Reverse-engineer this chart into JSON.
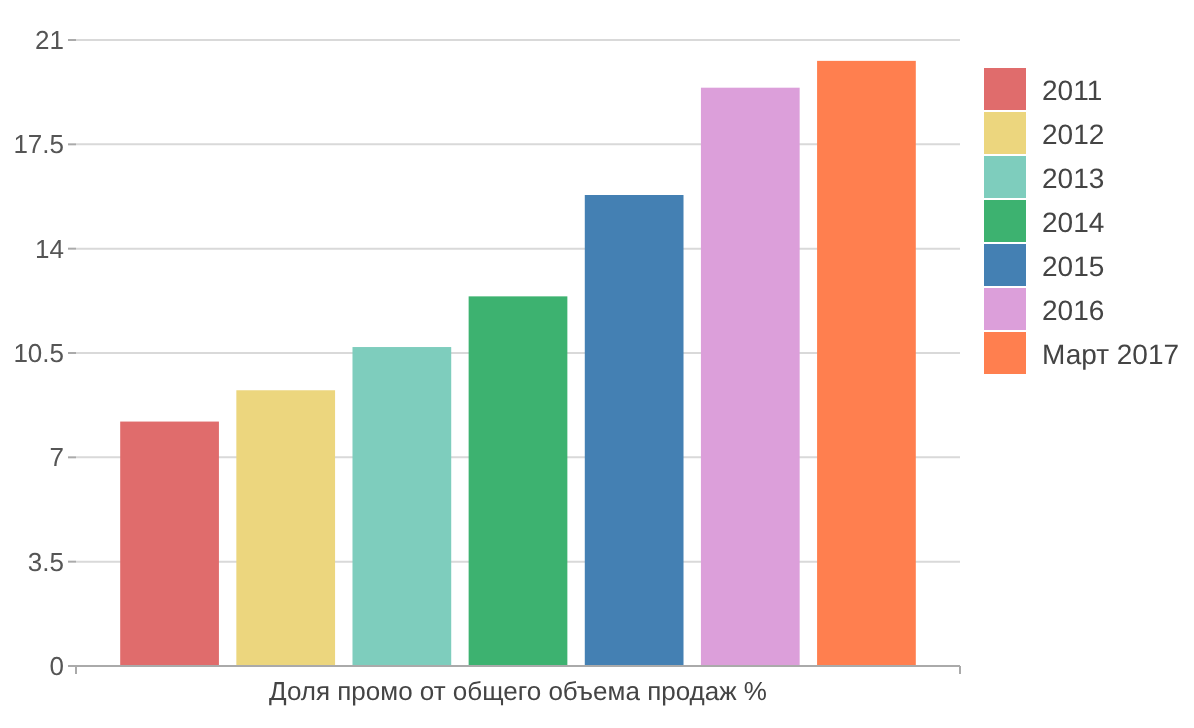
{
  "chart_data": {
    "type": "bar",
    "categories": [
      "Доля промо от общего объема продаж %"
    ],
    "series": [
      {
        "name": "2011",
        "color": "#e06c6c",
        "values": [
          8.2
        ]
      },
      {
        "name": "2012",
        "color": "#ecd67e",
        "values": [
          9.25
        ]
      },
      {
        "name": "2013",
        "color": "#7ecdbd",
        "values": [
          10.7
        ]
      },
      {
        "name": "2014",
        "color": "#3db270",
        "values": [
          12.4
        ]
      },
      {
        "name": "2015",
        "color": "#4480b3",
        "values": [
          15.8
        ]
      },
      {
        "name": "2016",
        "color": "#dc9fda",
        "values": [
          19.4
        ]
      },
      {
        "name": "Март 2017",
        "color": "#ff7f4f",
        "values": [
          20.3
        ]
      }
    ],
    "ylim": [
      0,
      21
    ],
    "yticks": [
      0,
      3.5,
      7,
      10.5,
      14,
      17.5,
      21
    ],
    "grid": "y",
    "legend": "right"
  }
}
